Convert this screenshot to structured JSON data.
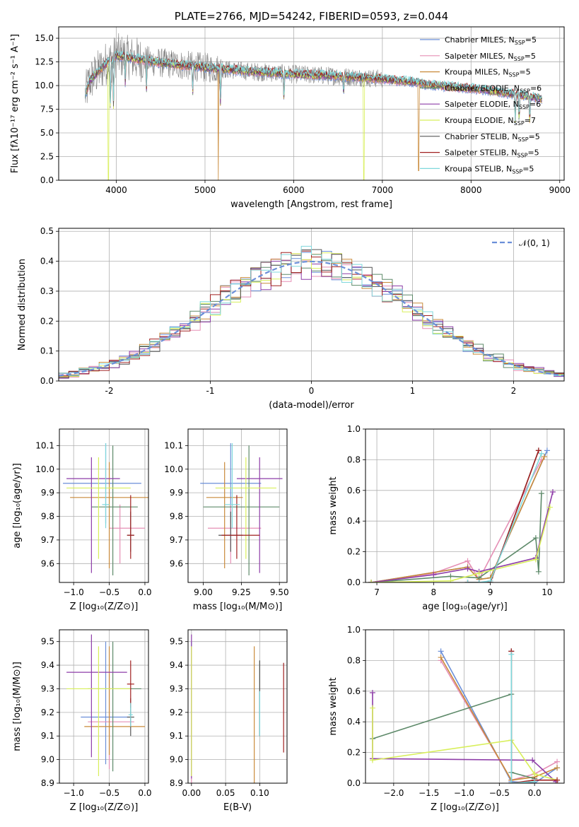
{
  "colors": [
    "#6b8fd8",
    "#e58fb5",
    "#c98a3a",
    "#5e8a6a",
    "#8e3da8",
    "#d8ef5a",
    "#555555",
    "#a02020",
    "#7fd8dc"
  ],
  "chart_data": [
    {
      "type": "line",
      "title": "PLATE=2766, MJD=54242, FIBERID=0593, z=0.044",
      "xlabel": "wavelength [Angstrom, rest frame]",
      "ylabel": "Flux [fλ10⁻¹⁷ erg cm⁻² s⁻¹ A⁻¹]",
      "xlim": [
        3350,
        9050
      ],
      "ylim": [
        0,
        16.2
      ],
      "xticks": [
        4000,
        5000,
        6000,
        7000,
        8000,
        9000
      ],
      "yticks": [
        0.0,
        2.5,
        5.0,
        7.5,
        10.0,
        12.5,
        15.0
      ],
      "ytick_labels": [
        "0.0",
        "2.5",
        "5.0",
        "7.5",
        "10.0",
        "12.5",
        "15.0"
      ],
      "legend_position": "top-right",
      "legend": [
        "Chabrier MILES, N_SSP=5",
        "Salpeter MILES, N_SSP=5",
        "Kroupa MILES, N_SSP=5",
        "Chabrier ELODIE, N_SSP=6",
        "Salpeter ELODIE, N_SSP=6",
        "Kroupa ELODIE, N_SSP=7",
        "Chabrier STELIB, N_SSP=5",
        "Salpeter STELIB, N_SSP=5",
        "Kroupa STELIB, N_SSP=5"
      ],
      "continuum": {
        "x": [
          3650,
          3700,
          3800,
          3900,
          3950,
          4000,
          4100,
          4300,
          4500,
          4700,
          5000,
          5500,
          6000,
          6500,
          7000,
          7400,
          7500,
          8000,
          8500,
          8800
        ],
        "y": [
          9.0,
          10.5,
          11.5,
          12.5,
          12.6,
          13.2,
          13.0,
          12.7,
          12.4,
          12.2,
          11.9,
          11.5,
          11.2,
          11.0,
          10.7,
          10.3,
          10.1,
          9.7,
          9.1,
          8.6
        ]
      }
    },
    {
      "type": "line",
      "xlabel": "(data-model)/error",
      "ylabel": "Normed distribution",
      "xlim": [
        -2.5,
        2.5
      ],
      "ylim": [
        0,
        0.51
      ],
      "xticks": [
        -2,
        -1,
        0,
        1,
        2
      ],
      "yticks": [
        0.0,
        0.1,
        0.2,
        0.3,
        0.4,
        0.5
      ],
      "ytick_labels": [
        "0.0",
        "0.1",
        "0.2",
        "0.3",
        "0.4",
        "0.5"
      ],
      "legend": [
        "𝒩(0, 1)"
      ],
      "legend_position": "top-right",
      "bin_width": 0.1
    },
    {
      "type": "scatter",
      "xlabel": "Z [log₁₀(Z/Z⊙)]",
      "ylabel": "age  [log₁₀(age/yr)]",
      "xlim": [
        -1.2,
        0.05
      ],
      "ylim": [
        9.52,
        10.17
      ],
      "xticks": [
        -1.0,
        -0.5,
        0.0
      ],
      "xtick_labels": [
        "−1.0",
        "−0.5",
        "0.0"
      ],
      "yticks": [
        9.6,
        9.7,
        9.8,
        9.9,
        10.0,
        10.1
      ],
      "ytick_labels": [
        "9.6",
        "9.7",
        "9.8",
        "9.9",
        "10.0",
        "10.1"
      ],
      "points": [
        {
          "x": -0.55,
          "xerr": [
            0.6,
            0.5
          ],
          "y": 9.94,
          "yerr": [
            0.17,
            0.17
          ]
        },
        {
          "x": -0.35,
          "xerr": [
            0.15,
            0.35
          ],
          "y": 9.75,
          "yerr": [
            0.15,
            0.1
          ]
        },
        {
          "x": -0.5,
          "xerr": [
            0.55,
            0.55
          ],
          "y": 9.88,
          "yerr": [
            0.3,
            0.15
          ]
        },
        {
          "x": -0.45,
          "xerr": [
            0.3,
            0.35
          ],
          "y": 9.84,
          "yerr": [
            0.29,
            0.26
          ]
        },
        {
          "x": -0.75,
          "xerr": [
            0.35,
            0.4
          ],
          "y": 9.96,
          "yerr": [
            0.4,
            0.09
          ]
        },
        {
          "x": -0.65,
          "xerr": [
            0.45,
            0.45
          ],
          "y": 9.92,
          "yerr": [
            0.3,
            0.13
          ]
        },
        {
          "x": -0.2,
          "xerr": [
            0.05,
            0.05
          ],
          "y": 9.72,
          "yerr": [
            0.07,
            0.1
          ]
        },
        {
          "x": -0.2,
          "xerr": [
            0.05,
            0.05
          ],
          "y": 9.72,
          "yerr": [
            0.1,
            0.17
          ]
        },
        {
          "x": -0.55,
          "xerr": [
            0.05,
            0.05
          ],
          "y": 9.85,
          "yerr": [
            0.1,
            0.26
          ]
        }
      ]
    },
    {
      "type": "scatter",
      "xlabel": "mass [log₁₀(M/M⊙)]",
      "xlim": [
        8.9,
        9.55
      ],
      "ylim": [
        9.52,
        10.17
      ],
      "xticks": [
        9.0,
        9.25,
        9.5
      ],
      "xtick_labels": [
        "9.00",
        "9.25",
        "9.50"
      ],
      "yticks": [
        9.6,
        9.7,
        9.8,
        9.9,
        10.0,
        10.1
      ],
      "ytick_labels": [
        "9.6",
        "9.7",
        "9.8",
        "9.9",
        "10.0",
        "10.1"
      ],
      "points": [
        {
          "x": 9.18,
          "xerr": [
            0.2,
            0.2
          ],
          "y": 9.94,
          "yerr": [
            0.17,
            0.17
          ]
        },
        {
          "x": 9.18,
          "xerr": [
            0.15,
            0.2
          ],
          "y": 9.75,
          "yerr": [
            0.15,
            0.1
          ]
        },
        {
          "x": 9.14,
          "xerr": [
            0.12,
            0.12
          ],
          "y": 9.88,
          "yerr": [
            0.3,
            0.15
          ]
        },
        {
          "x": 9.3,
          "xerr": [
            0.3,
            0.2
          ],
          "y": 9.84,
          "yerr": [
            0.29,
            0.26
          ]
        },
        {
          "x": 9.37,
          "xerr": [
            0.15,
            0.15
          ],
          "y": 9.96,
          "yerr": [
            0.4,
            0.09
          ]
        },
        {
          "x": 9.28,
          "xerr": [
            0.2,
            0.2
          ],
          "y": 9.92,
          "yerr": [
            0.3,
            0.13
          ]
        },
        {
          "x": 9.18,
          "xerr": [
            0.08,
            0.08
          ],
          "y": 9.72,
          "yerr": [
            0.07,
            0.1
          ]
        },
        {
          "x": 9.22,
          "xerr": [
            0.1,
            0.15
          ],
          "y": 9.72,
          "yerr": [
            0.1,
            0.17
          ]
        },
        {
          "x": 9.19,
          "xerr": [
            0.05,
            0.05
          ],
          "y": 9.85,
          "yerr": [
            0.1,
            0.26
          ]
        }
      ]
    },
    {
      "type": "line",
      "xlabel": "age  [log₁₀(age/yr)]",
      "ylabel": "mass weight",
      "xlim": [
        6.8,
        10.3
      ],
      "ylim": [
        0,
        1
      ],
      "xticks": [
        7,
        8,
        9,
        10
      ],
      "yticks": [
        0.0,
        0.2,
        0.4,
        0.6,
        0.8,
        1.0
      ],
      "ytick_labels": [
        "0.0",
        "0.2",
        "0.4",
        "0.6",
        "0.8",
        "1.0"
      ],
      "series": [
        {
          "x": [
            6.9,
            8.6,
            8.8,
            9.0,
            10.0
          ],
          "y": [
            0.0,
            0.1,
            0.02,
            0.03,
            0.86
          ]
        },
        {
          "x": [
            6.9,
            8.0,
            8.6,
            8.8,
            9.9
          ],
          "y": [
            0.0,
            0.06,
            0.14,
            0.02,
            0.8
          ]
        },
        {
          "x": [
            6.9,
            8.6,
            8.8,
            9.0,
            9.95
          ],
          "y": [
            0.0,
            0.1,
            0.02,
            0.03,
            0.82
          ]
        },
        {
          "x": [
            6.9,
            8.3,
            8.8,
            9.8,
            9.85,
            9.9
          ],
          "y": [
            0.0,
            0.04,
            0.03,
            0.29,
            0.07,
            0.58
          ]
        },
        {
          "x": [
            6.9,
            8.0,
            8.6,
            8.8,
            9.8,
            10.1
          ],
          "y": [
            0.0,
            0.05,
            0.09,
            0.07,
            0.16,
            0.59
          ]
        },
        {
          "x": [
            6.9,
            8.3,
            8.8,
            9.8,
            10.05
          ],
          "y": [
            0.0,
            0.01,
            0.06,
            0.15,
            0.49
          ]
        },
        {
          "x": [
            8.6,
            8.8,
            9.0,
            9.85
          ],
          "y": [
            0.0,
            0.0,
            0.0,
            0.86
          ]
        },
        {
          "x": [
            8.6,
            8.8,
            9.0,
            9.85
          ],
          "y": [
            0.0,
            0.0,
            0.0,
            0.86
          ]
        },
        {
          "x": [
            8.6,
            8.8,
            9.0,
            9.9
          ],
          "y": [
            0.0,
            0.0,
            0.01,
            0.84
          ]
        }
      ]
    },
    {
      "type": "scatter",
      "xlabel": "Z [log₁₀(Z/Z⊙)]",
      "ylabel": "mass [log₁₀(M/M⊙)]",
      "xlim": [
        -1.2,
        0.05
      ],
      "ylim": [
        8.9,
        9.55
      ],
      "xticks": [
        -1.0,
        -0.5,
        0.0
      ],
      "xtick_labels": [
        "−1.0",
        "−0.5",
        "0.0"
      ],
      "yticks": [
        8.9,
        9.0,
        9.1,
        9.2,
        9.3,
        9.4,
        9.5
      ],
      "ytick_labels": [
        "8.9",
        "9.0",
        "9.1",
        "9.2",
        "9.3",
        "9.4",
        "9.5"
      ],
      "points": [
        {
          "x": -0.55,
          "xerr": [
            0.35,
            0.35
          ],
          "y": 9.18,
          "yerr": [
            0.2,
            0.32
          ]
        },
        {
          "x": -0.5,
          "xerr": [
            0.3,
            0.35
          ],
          "y": 9.16,
          "yerr": [
            0.2,
            0.2
          ]
        },
        {
          "x": -0.5,
          "xerr": [
            0.35,
            0.5
          ],
          "y": 9.14,
          "yerr": [
            0.12,
            0.34
          ]
        },
        {
          "x": -0.45,
          "xerr": [
            0.35,
            0.4
          ],
          "y": 9.3,
          "yerr": [
            0.35,
            0.2
          ]
        },
        {
          "x": -0.75,
          "xerr": [
            0.35,
            0.5
          ],
          "y": 9.37,
          "yerr": [
            0.36,
            0.16
          ]
        },
        {
          "x": -0.65,
          "xerr": [
            0.45,
            0.45
          ],
          "y": 9.3,
          "yerr": [
            0.37,
            0.18
          ]
        },
        {
          "x": -0.2,
          "xerr": [
            0.05,
            0.05
          ],
          "y": 9.18,
          "yerr": [
            0.08,
            0.08
          ]
        },
        {
          "x": -0.2,
          "xerr": [
            0.05,
            0.05
          ],
          "y": 9.32,
          "yerr": [
            0.1,
            0.1
          ]
        },
        {
          "x": -0.2,
          "xerr": [
            0.03,
            0.03
          ],
          "y": 9.19,
          "yerr": [
            0.05,
            0.05
          ]
        }
      ]
    },
    {
      "type": "scatter",
      "xlabel": "E(B-V)",
      "xlim": [
        -0.005,
        0.14
      ],
      "ylim": [
        8.9,
        9.55
      ],
      "xticks": [
        0.0,
        0.05,
        0.1
      ],
      "xtick_labels": [
        "0.00",
        "0.05",
        "0.10"
      ],
      "yticks": [
        8.9,
        9.0,
        9.1,
        9.2,
        9.3,
        9.4,
        9.5
      ],
      "ytick_labels": [
        "8.9",
        "9.0",
        "9.1",
        "9.2",
        "9.3",
        "9.4",
        "9.5"
      ],
      "points": [
        {
          "x": 0.0,
          "y": 9.3,
          "yerr": [
            0.35,
            0.2
          ]
        },
        {
          "x": 0.0,
          "y": 9.18,
          "yerr": [
            0.28,
            0.3
          ]
        },
        {
          "x": 0.092,
          "y": 9.14,
          "yerr": [
            0.29,
            0.34
          ]
        },
        {
          "x": 0.1,
          "y": 9.3,
          "yerr": [
            0.2,
            0.12
          ]
        },
        {
          "x": 0.0,
          "y": 9.37,
          "yerr": [
            0.45,
            0.16
          ]
        },
        {
          "x": 0.0,
          "y": 9.3,
          "yerr": [
            0.37,
            0.18
          ]
        },
        {
          "x": 0.1,
          "y": 9.26,
          "yerr": [
            0.16,
            0.16
          ]
        },
        {
          "x": 0.135,
          "y": 9.18,
          "yerr": [
            0.15,
            0.23
          ]
        },
        {
          "x": 0.1,
          "y": 9.19,
          "yerr": [
            0.09,
            0.1
          ]
        }
      ]
    },
    {
      "type": "line",
      "xlabel": "Z [log₁₀(Z/Z⊙)]",
      "ylabel": "mass weight",
      "xlim": [
        -2.4,
        0.42
      ],
      "ylim": [
        0,
        1
      ],
      "xticks": [
        -2.0,
        -1.5,
        -1.0,
        -0.5,
        0.0
      ],
      "xtick_labels": [
        "−2.0",
        "−1.5",
        "−1.0",
        "−0.5",
        "0.0"
      ],
      "yticks": [
        0.0,
        0.2,
        0.4,
        0.6,
        0.8,
        1.0
      ],
      "ytick_labels": [
        "0.0",
        "0.2",
        "0.4",
        "0.6",
        "0.8",
        "1.0"
      ],
      "series": [
        {
          "x": [
            -1.33,
            -0.33,
            0.0,
            0.32
          ],
          "y": [
            0.86,
            0.01,
            0.0,
            0.1
          ]
        },
        {
          "x": [
            -1.33,
            -0.33,
            0.0,
            0.32
          ],
          "y": [
            0.8,
            0.02,
            0.06,
            0.14
          ]
        },
        {
          "x": [
            -1.33,
            -0.33,
            0.0,
            0.32
          ],
          "y": [
            0.82,
            0.02,
            0.04,
            0.1
          ]
        },
        {
          "x": [
            -2.3,
            -0.33,
            -0.33,
            0.0
          ],
          "y": [
            0.29,
            0.58,
            0.07,
            0.03
          ]
        },
        {
          "x": [
            -2.3,
            -2.3,
            -0.03,
            0.3
          ],
          "y": [
            0.59,
            0.16,
            0.15,
            0.01
          ]
        },
        {
          "x": [
            -2.3,
            -2.3,
            -0.33,
            0.0,
            0.32
          ],
          "y": [
            0.49,
            0.15,
            0.28,
            0.06,
            0.02
          ]
        },
        {
          "x": [
            -0.33,
            -0.33,
            0.0
          ],
          "y": [
            0.86,
            0.0,
            0.0
          ]
        },
        {
          "x": [
            -0.33,
            -0.33,
            0.0,
            0.32
          ],
          "y": [
            0.86,
            0.0,
            0.02,
            0.02
          ]
        },
        {
          "x": [
            -0.33,
            -0.33,
            0.0
          ],
          "y": [
            0.84,
            0.0,
            0.01
          ]
        }
      ]
    }
  ]
}
